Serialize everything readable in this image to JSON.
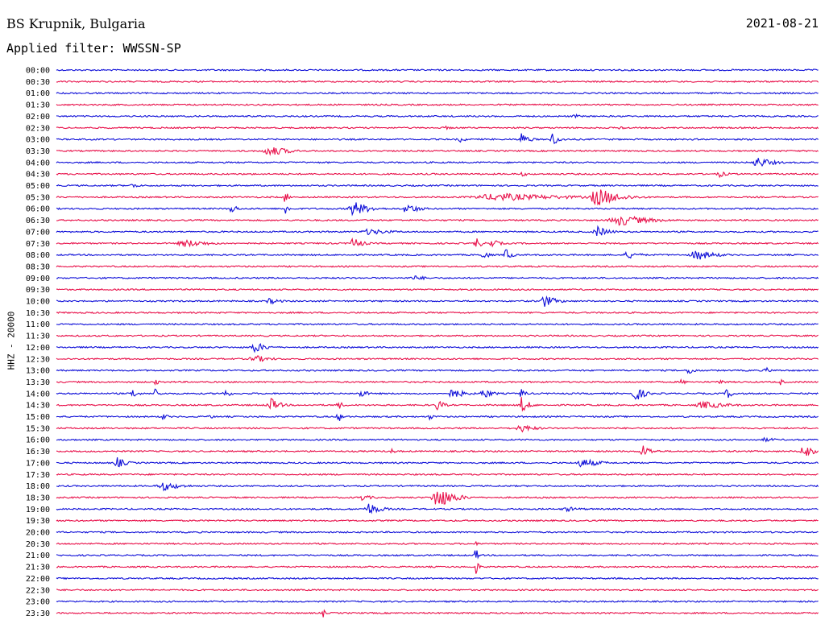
{
  "header": {
    "station": "BS Krupnik, Bulgaria",
    "filter": "Applied filter: WWSSN-SP",
    "date": "2021-08-21"
  },
  "chart_data": {
    "type": "line",
    "ylabel": "HHZ - 20000",
    "colors": {
      "even": "#1010d8",
      "odd": "#e8104a"
    },
    "traces": [
      {
        "label": "00:00",
        "bursts": []
      },
      {
        "label": "00:30",
        "bursts": []
      },
      {
        "label": "01:00",
        "bursts": []
      },
      {
        "label": "01:30",
        "bursts": []
      },
      {
        "label": "02:00",
        "bursts": [
          {
            "t": 0.68,
            "a": 3,
            "w": 0.01
          }
        ]
      },
      {
        "label": "02:30",
        "bursts": [
          {
            "t": 0.51,
            "a": 3,
            "w": 0.01
          },
          {
            "t": 0.74,
            "a": 3,
            "w": 0.01
          }
        ]
      },
      {
        "label": "03:00",
        "bursts": [
          {
            "t": 0.53,
            "a": 4,
            "w": 0.01
          },
          {
            "t": 0.61,
            "a": 9,
            "w": 0.012
          },
          {
            "t": 0.65,
            "a": 9,
            "w": 0.012
          }
        ]
      },
      {
        "label": "03:30",
        "bursts": [
          {
            "t": 0.28,
            "a": 7,
            "w": 0.03
          }
        ]
      },
      {
        "label": "04:00",
        "bursts": [
          {
            "t": 0.92,
            "a": 7,
            "w": 0.025
          }
        ]
      },
      {
        "label": "04:30",
        "bursts": [
          {
            "t": 0.61,
            "a": 3,
            "w": 0.015
          },
          {
            "t": 0.87,
            "a": 4,
            "w": 0.015
          }
        ]
      },
      {
        "label": "05:00",
        "bursts": [
          {
            "t": 0.1,
            "a": 4,
            "w": 0.01
          }
        ]
      },
      {
        "label": "05:30",
        "bursts": [
          {
            "t": 0.3,
            "a": 12,
            "w": 0.004
          },
          {
            "t": 0.58,
            "a": 5,
            "w": 0.12
          },
          {
            "t": 0.71,
            "a": 12,
            "w": 0.035
          }
        ]
      },
      {
        "label": "06:00",
        "bursts": [
          {
            "t": 0.23,
            "a": 8,
            "w": 0.008
          },
          {
            "t": 0.3,
            "a": 8,
            "w": 0.008
          },
          {
            "t": 0.39,
            "a": 10,
            "w": 0.025
          },
          {
            "t": 0.46,
            "a": 7,
            "w": 0.02
          }
        ]
      },
      {
        "label": "06:30",
        "bursts": [
          {
            "t": 0.74,
            "a": 7,
            "w": 0.05
          }
        ]
      },
      {
        "label": "07:00",
        "bursts": [
          {
            "t": 0.41,
            "a": 4,
            "w": 0.04
          },
          {
            "t": 0.71,
            "a": 7,
            "w": 0.02
          }
        ]
      },
      {
        "label": "07:30",
        "bursts": [
          {
            "t": 0.17,
            "a": 5,
            "w": 0.04
          },
          {
            "t": 0.39,
            "a": 8,
            "w": 0.015
          },
          {
            "t": 0.55,
            "a": 10,
            "w": 0.008
          },
          {
            "t": 0.57,
            "a": 6,
            "w": 0.015
          }
        ]
      },
      {
        "label": "08:00",
        "bursts": [
          {
            "t": 0.56,
            "a": 6,
            "w": 0.01
          },
          {
            "t": 0.59,
            "a": 10,
            "w": 0.008
          },
          {
            "t": 0.75,
            "a": 5,
            "w": 0.02
          },
          {
            "t": 0.84,
            "a": 7,
            "w": 0.03
          }
        ]
      },
      {
        "label": "08:30",
        "bursts": []
      },
      {
        "label": "09:00",
        "bursts": [
          {
            "t": 0.47,
            "a": 3,
            "w": 0.03
          }
        ]
      },
      {
        "label": "09:30",
        "bursts": []
      },
      {
        "label": "10:00",
        "bursts": [
          {
            "t": 0.28,
            "a": 4,
            "w": 0.02
          },
          {
            "t": 0.64,
            "a": 8,
            "w": 0.02
          }
        ]
      },
      {
        "label": "10:30",
        "bursts": []
      },
      {
        "label": "11:00",
        "bursts": []
      },
      {
        "label": "11:30",
        "bursts": []
      },
      {
        "label": "12:00",
        "bursts": [
          {
            "t": 0.26,
            "a": 7,
            "w": 0.02
          }
        ]
      },
      {
        "label": "12:30",
        "bursts": [
          {
            "t": 0.26,
            "a": 5,
            "w": 0.025
          }
        ]
      },
      {
        "label": "13:00",
        "bursts": [
          {
            "t": 0.83,
            "a": 6,
            "w": 0.01
          },
          {
            "t": 0.93,
            "a": 5,
            "w": 0.008
          }
        ]
      },
      {
        "label": "13:30",
        "bursts": [
          {
            "t": 0.13,
            "a": 5,
            "w": 0.005
          },
          {
            "t": 0.28,
            "a": 3,
            "w": 0.005
          },
          {
            "t": 0.82,
            "a": 4,
            "w": 0.008
          },
          {
            "t": 0.87,
            "a": 5,
            "w": 0.008
          },
          {
            "t": 0.95,
            "a": 4,
            "w": 0.008
          }
        ]
      },
      {
        "label": "14:00",
        "bursts": [
          {
            "t": 0.1,
            "a": 7,
            "w": 0.008
          },
          {
            "t": 0.13,
            "a": 8,
            "w": 0.006
          },
          {
            "t": 0.22,
            "a": 6,
            "w": 0.01
          },
          {
            "t": 0.4,
            "a": 8,
            "w": 0.008
          },
          {
            "t": 0.52,
            "a": 7,
            "w": 0.02
          },
          {
            "t": 0.56,
            "a": 7,
            "w": 0.015
          },
          {
            "t": 0.61,
            "a": 9,
            "w": 0.006
          },
          {
            "t": 0.76,
            "a": 10,
            "w": 0.015
          },
          {
            "t": 0.88,
            "a": 7,
            "w": 0.01
          }
        ]
      },
      {
        "label": "14:30",
        "bursts": [
          {
            "t": 0.28,
            "a": 10,
            "w": 0.015
          },
          {
            "t": 0.37,
            "a": 6,
            "w": 0.008
          },
          {
            "t": 0.5,
            "a": 8,
            "w": 0.01
          },
          {
            "t": 0.61,
            "a": 11,
            "w": 0.012
          },
          {
            "t": 0.85,
            "a": 5,
            "w": 0.04
          }
        ]
      },
      {
        "label": "15:00",
        "bursts": [
          {
            "t": 0.14,
            "a": 6,
            "w": 0.006
          },
          {
            "t": 0.2,
            "a": 5,
            "w": 0.006
          },
          {
            "t": 0.37,
            "a": 7,
            "w": 0.008
          },
          {
            "t": 0.49,
            "a": 4,
            "w": 0.008
          }
        ]
      },
      {
        "label": "15:30",
        "bursts": [
          {
            "t": 0.61,
            "a": 5,
            "w": 0.025
          }
        ]
      },
      {
        "label": "16:00",
        "bursts": [
          {
            "t": 0.93,
            "a": 3,
            "w": 0.02
          }
        ]
      },
      {
        "label": "16:30",
        "bursts": [
          {
            "t": 0.44,
            "a": 4,
            "w": 0.006
          },
          {
            "t": 0.77,
            "a": 8,
            "w": 0.015
          },
          {
            "t": 0.98,
            "a": 10,
            "w": 0.015
          }
        ]
      },
      {
        "label": "17:00",
        "bursts": [
          {
            "t": 0.08,
            "a": 7,
            "w": 0.015
          },
          {
            "t": 0.69,
            "a": 6,
            "w": 0.03
          }
        ]
      },
      {
        "label": "17:30",
        "bursts": []
      },
      {
        "label": "18:00",
        "bursts": [
          {
            "t": 0.14,
            "a": 6,
            "w": 0.03
          }
        ]
      },
      {
        "label": "18:30",
        "bursts": [
          {
            "t": 0.4,
            "a": 4,
            "w": 0.02
          },
          {
            "t": 0.5,
            "a": 15,
            "w": 0.025
          }
        ]
      },
      {
        "label": "19:00",
        "bursts": [
          {
            "t": 0.41,
            "a": 8,
            "w": 0.02
          },
          {
            "t": 0.67,
            "a": 3,
            "w": 0.03
          }
        ]
      },
      {
        "label": "19:30",
        "bursts": []
      },
      {
        "label": "20:00",
        "bursts": []
      },
      {
        "label": "20:30",
        "bursts": [
          {
            "t": 0.55,
            "a": 3,
            "w": 0.005
          }
        ]
      },
      {
        "label": "21:00",
        "bursts": [
          {
            "t": 0.55,
            "a": 12,
            "w": 0.004
          }
        ]
      },
      {
        "label": "21:30",
        "bursts": [
          {
            "t": 0.55,
            "a": 14,
            "w": 0.004
          }
        ]
      },
      {
        "label": "22:00",
        "bursts": []
      },
      {
        "label": "22:30",
        "bursts": []
      },
      {
        "label": "23:00",
        "bursts": []
      },
      {
        "label": "23:30",
        "bursts": [
          {
            "t": 0.35,
            "a": 6,
            "w": 0.004
          }
        ]
      }
    ]
  }
}
